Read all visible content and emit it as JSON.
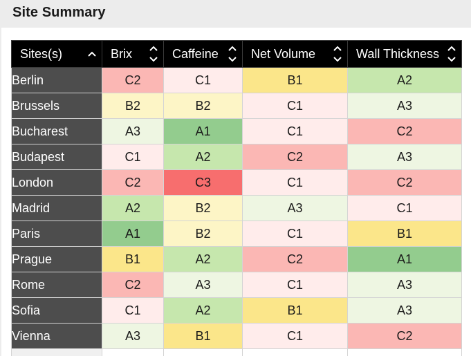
{
  "panel": {
    "title": "Site Summary"
  },
  "table": {
    "columns": [
      {
        "label": "Sites(s)",
        "sort": "asc-only"
      },
      {
        "label": "Brix",
        "sort": "both"
      },
      {
        "label": "Caffeine",
        "sort": "both"
      },
      {
        "label": "Net Volume",
        "sort": "both"
      },
      {
        "label": "Wall Thickness",
        "sort": "both"
      }
    ],
    "rows": [
      {
        "site": "Berlin",
        "values": [
          "C2",
          "C1",
          "B1",
          "A2"
        ]
      },
      {
        "site": "Brussels",
        "values": [
          "B2",
          "B2",
          "C1",
          "A3"
        ]
      },
      {
        "site": "Bucharest",
        "values": [
          "A3",
          "A1",
          "C1",
          "C2"
        ]
      },
      {
        "site": "Budapest",
        "values": [
          "C1",
          "A2",
          "C2",
          "A3"
        ]
      },
      {
        "site": "London",
        "values": [
          "C2",
          "C3",
          "C1",
          "C2"
        ]
      },
      {
        "site": "Madrid",
        "values": [
          "A2",
          "B2",
          "A3",
          "C1"
        ]
      },
      {
        "site": "Paris",
        "values": [
          "A1",
          "B2",
          "C1",
          "B1"
        ]
      },
      {
        "site": "Prague",
        "values": [
          "B1",
          "A2",
          "C2",
          "A1"
        ]
      },
      {
        "site": "Rome",
        "values": [
          "C2",
          "A3",
          "C1",
          "A3"
        ]
      },
      {
        "site": "Sofia",
        "values": [
          "C1",
          "A2",
          "B1",
          "A3"
        ]
      },
      {
        "site": "Vienna",
        "values": [
          "A3",
          "B1",
          "C1",
          "C2"
        ]
      }
    ]
  },
  "colors": {
    "A1": "#93cc8e",
    "A2": "#c6e7ad",
    "A3": "#eef6e2",
    "B1": "#fbe68a",
    "B2": "#fdf5c6",
    "C1": "#ffeceb",
    "C2": "#fbb7b4",
    "C3": "#f76e6e",
    "header_bg": "#000000",
    "site_bg": "#4d4d4d"
  }
}
